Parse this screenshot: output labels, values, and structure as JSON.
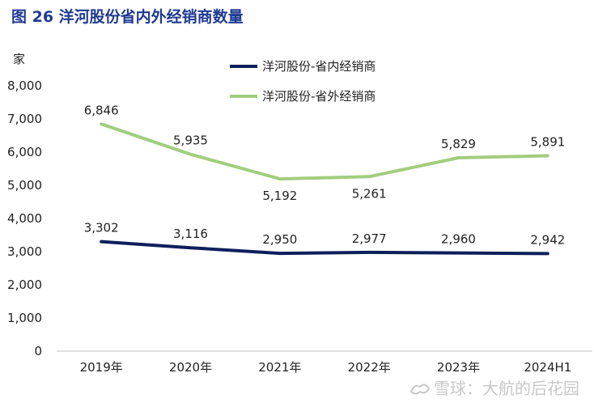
{
  "header": {
    "title": "图 26 洋河股份省内外经销商数量"
  },
  "watermark": {
    "text": "雪球：大航的后花园"
  },
  "colors": {
    "series_inside": "#0e1f5b",
    "series_outside": "#a2cd7f"
  },
  "chart_data": {
    "type": "line",
    "unit_label": "家",
    "x": [
      "2019年",
      "2020年",
      "2021年",
      "2022年",
      "2023年",
      "2024H1"
    ],
    "ylim": [
      0,
      8000
    ],
    "yticks": [
      "0",
      "1,000",
      "2,000",
      "3,000",
      "4,000",
      "5,000",
      "6,000",
      "7,000",
      "8,000"
    ],
    "grid": false,
    "legend_position": "top-center",
    "series": [
      {
        "name": "洋河股份-省内经销商",
        "values": [
          3302,
          3116,
          2950,
          2977,
          2960,
          2942
        ],
        "labels": [
          "3,302",
          "3,116",
          "2,950",
          "2,977",
          "2,960",
          "2,942"
        ]
      },
      {
        "name": "洋河股份-省外经销商",
        "values": [
          6846,
          5935,
          5192,
          5261,
          5829,
          5891
        ],
        "labels": [
          "6,846",
          "5,935",
          "5,192",
          "5,261",
          "5,829",
          "5,891"
        ]
      }
    ]
  }
}
